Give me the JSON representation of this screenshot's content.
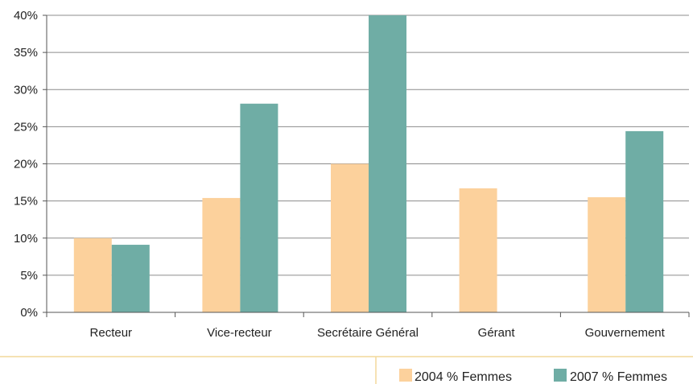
{
  "chart_data": {
    "type": "bar",
    "categories": [
      "Recteur",
      "Vice-recteur",
      "Secrétaire Général",
      "Gérant",
      "Gouvernement"
    ],
    "series": [
      {
        "name": "2004 % Femmes",
        "values": [
          10.0,
          15.4,
          20.0,
          16.7,
          15.5
        ],
        "color": "#fcd19c"
      },
      {
        "name": "2007 % Femmes",
        "values": [
          9.1,
          28.1,
          40.0,
          null,
          24.4
        ],
        "color": "#6fada5"
      }
    ],
    "y_ticks": [
      "0%",
      "5%",
      "10%",
      "15%",
      "20%",
      "25%",
      "30%",
      "35%",
      "40%"
    ],
    "ylim": [
      0,
      40
    ],
    "grid": true,
    "legend_position": "bottom-right",
    "title": "",
    "xlabel": "",
    "ylabel": ""
  }
}
